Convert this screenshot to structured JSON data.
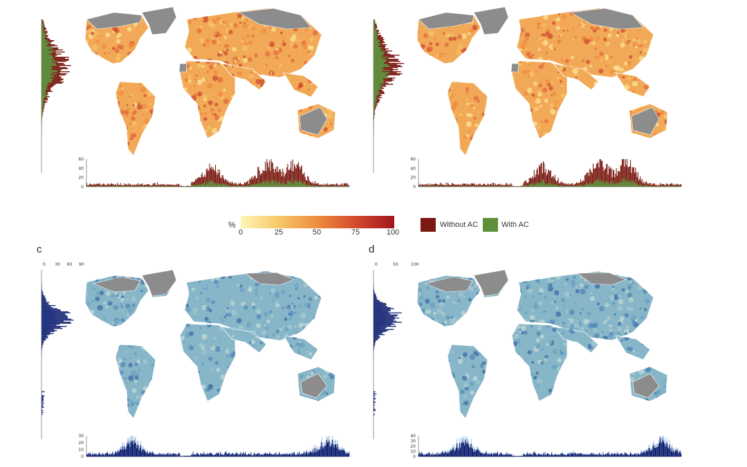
{
  "panels": [
    {
      "id": "a",
      "label": "",
      "scheme": "warm",
      "top_ticks": [],
      "side_ticks": [
        "60",
        "40",
        "20",
        "0"
      ],
      "bottom_peak": 60
    },
    {
      "id": "b",
      "label": "",
      "scheme": "warm",
      "top_ticks": [],
      "side_ticks": [
        "60",
        "40",
        "20",
        "0"
      ],
      "bottom_peak": 60
    },
    {
      "id": "c",
      "label": "c",
      "scheme": "blue",
      "top_ticks": [
        "0",
        "30",
        "60",
        "90"
      ],
      "side_ticks": [
        "30",
        "20",
        "10",
        "0"
      ],
      "bottom_peak": 30
    },
    {
      "id": "d",
      "label": "d",
      "scheme": "blue",
      "top_ticks": [
        "0",
        "50",
        "100"
      ],
      "side_ticks": [
        "40",
        "30",
        "20",
        "10",
        "0"
      ],
      "bottom_peak": 40
    }
  ],
  "colorbar": {
    "unit": "%",
    "ticks": [
      "0",
      "25",
      "50",
      "75",
      "100"
    ],
    "colors": [
      "#fdf6b8",
      "#f7c766",
      "#ee8c3e",
      "#d24a2c",
      "#a1161e"
    ]
  },
  "legend": {
    "items": [
      {
        "label": "Without AC",
        "color": "#7a1a12"
      },
      {
        "label": "With AC",
        "color": "#5e8f3b"
      }
    ]
  },
  "colors": {
    "land_gray": "#8c8c8c",
    "border": "#ffffff",
    "warm_base": "#f2a957",
    "blue_base": "#87b6c8",
    "blue_hist": "#0b1a6b",
    "blue_hist_light": "#a9c5e4"
  }
}
